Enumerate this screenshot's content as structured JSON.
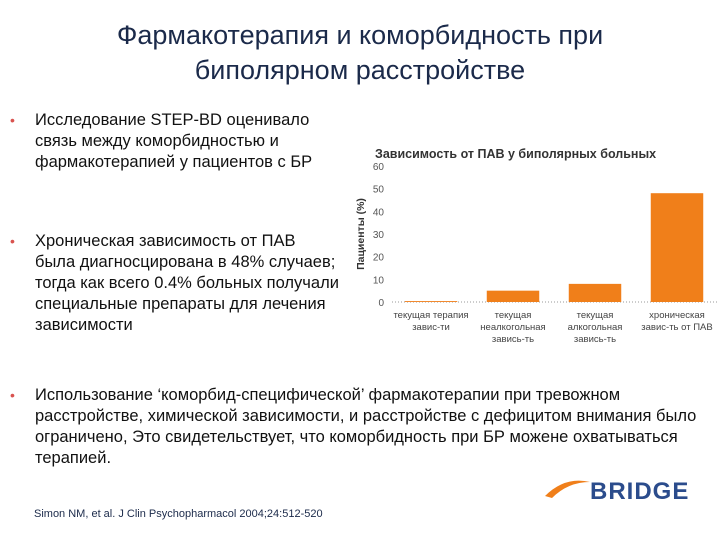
{
  "title": "Фармакотерапия и коморбидность при биполярном расстройстве",
  "bullets": [
    "Исследование STEP-BD оценивало связь между коморбидностью и фармакотерапией у пациентов с БР",
    "Хроническая зависимость от ПАВ была диагносцирована в 48% случаев; тогда как всего 0.4% больных получали специальные препараты для лечения зависимости",
    "Использование ‘коморбид-специфической’ фармакотерапии при тревожном расстройстве, химической зависимости, и расстройстве с дефицитом внимания было ограничено, Это свидетельствует, что коморбидность при БР можене охватываться терапией."
  ],
  "citation": "Simon NM, et al. J Clin Psychopharmacol 2004;24:512-520",
  "logo": "BRIDGE",
  "chart_data": {
    "type": "bar",
    "title": "Зависимость от ПАВ у биполярных больных",
    "y_label": "Пациенты (%)",
    "categories": [
      "текущая терапия\nзавис-ти",
      "текущая\nнеалкогольная\nзавись-ть",
      "текущая\nалкогольная\nзавись-ть",
      "хроническая\nзавис-ть от ПАВ"
    ],
    "values": [
      0.4,
      5,
      8,
      48
    ],
    "color": "#f07f1a",
    "ylim": [
      0,
      60
    ],
    "yticks": [
      0,
      10,
      20,
      30,
      40,
      50,
      60
    ]
  }
}
